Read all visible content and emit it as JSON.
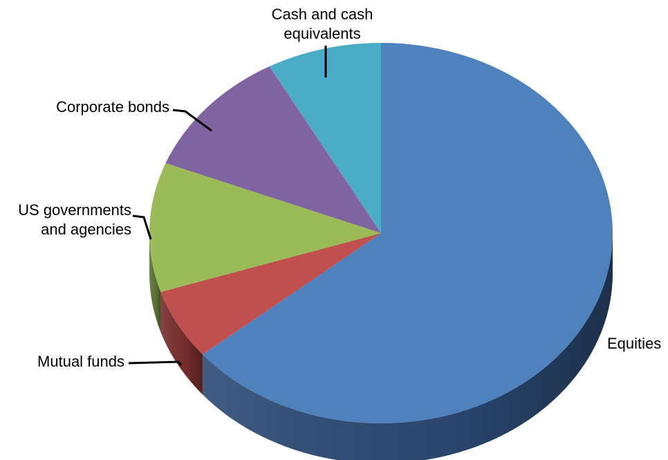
{
  "chart_data": {
    "type": "pie",
    "three_d": true,
    "title": "",
    "legend": "none",
    "slices": [
      {
        "name": "Equities",
        "value": 64,
        "color": "#4f81bd",
        "side_color": "#2c4a74",
        "label_lines": [
          "Equities"
        ]
      },
      {
        "name": "Mutual funds",
        "value": 6,
        "color": "#c0504d",
        "side_color": "#7a2f2d",
        "label_lines": [
          "Mutual funds"
        ]
      },
      {
        "name": "US governments and agencies",
        "value": 11,
        "color": "#9bbb59",
        "side_color": "#5f7536",
        "label_lines": [
          "US governments",
          "and agencies"
        ]
      },
      {
        "name": "Corporate bonds",
        "value": 11,
        "color": "#8064a2",
        "side_color": "#4e3c63",
        "label_lines": [
          "Corporate bonds"
        ]
      },
      {
        "name": "Cash and cash equivalents",
        "value": 8,
        "color": "#4bacc6",
        "side_color": "#2c6a7b",
        "label_lines": [
          "Cash and cash",
          "equivalents"
        ]
      }
    ]
  }
}
